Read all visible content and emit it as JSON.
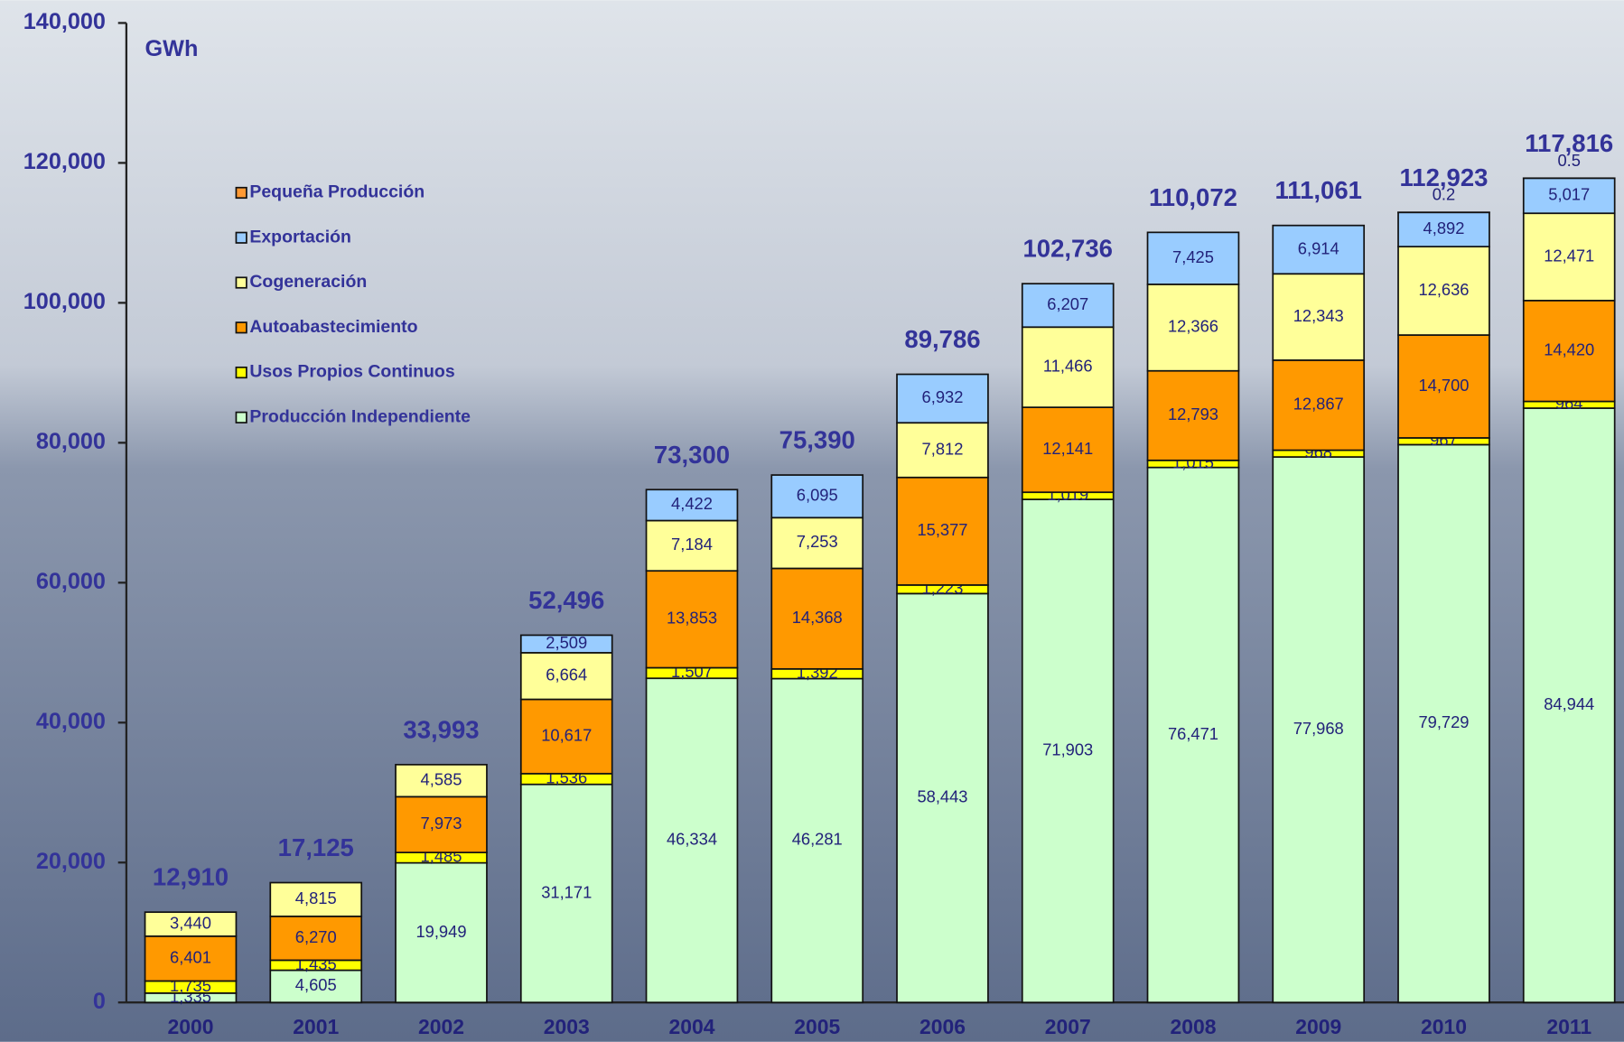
{
  "chart_data": {
    "type": "stacked-bar",
    "unit_label": "GWh",
    "categories": [
      "2000",
      "2001",
      "2002",
      "2003",
      "2004",
      "2005",
      "2006",
      "2007",
      "2008",
      "2009",
      "2010",
      "2011"
    ],
    "series": [
      {
        "name": "Producción Independiente",
        "color": "#ccffcc",
        "values": [
          1335,
          4605,
          19949,
          31171,
          46334,
          46281,
          58443,
          71903,
          76471,
          77968,
          79729,
          84944
        ],
        "value_labels": [
          "1,335",
          "4,605",
          "19,949",
          "31,171",
          "46,334",
          "46,281",
          "58,443",
          "71,903",
          "76,471",
          "77,968",
          "79,729",
          "84,944"
        ]
      },
      {
        "name": "Usos Propios Continuos",
        "color": "#ffff00",
        "values": [
          1735,
          1435,
          1485,
          1536,
          1507,
          1392,
          1223,
          1019,
          1015,
          968,
          967,
          964
        ],
        "value_labels": [
          "1,735",
          "1,435",
          "1,485",
          "1,536",
          "1,507",
          "1,392",
          "1,223",
          "1,019",
          "1,015",
          "968",
          "967",
          "964"
        ]
      },
      {
        "name": "Autoabastecimiento",
        "color": "#ff9900",
        "values": [
          6401,
          6270,
          7973,
          10617,
          13853,
          14368,
          15377,
          12141,
          12793,
          12867,
          14700,
          14420
        ],
        "value_labels": [
          "6,401",
          "6,270",
          "7,973",
          "10,617",
          "13,853",
          "14,368",
          "15,377",
          "12,141",
          "12,793",
          "12,867",
          "14,700",
          "14,420"
        ]
      },
      {
        "name": "Cogeneración",
        "color": "#ffff99",
        "values": [
          3440,
          4815,
          4585,
          6664,
          7184,
          7253,
          7812,
          11466,
          12366,
          12343,
          12636,
          12471
        ],
        "value_labels": [
          "3,440",
          "4,815",
          "4,585",
          "6,664",
          "7,184",
          "7,253",
          "7,812",
          "11,466",
          "12,366",
          "12,343",
          "12,636",
          "12,471"
        ]
      },
      {
        "name": "Exportación",
        "color": "#99ccff",
        "values": [
          null,
          null,
          null,
          2509,
          4422,
          6095,
          6932,
          6207,
          7425,
          6914,
          4892,
          5017
        ],
        "value_labels": [
          null,
          null,
          null,
          "2,509",
          "4,422",
          "6,095",
          "6,932",
          "6,207",
          "7,425",
          "6,914",
          "4,892",
          "5,017"
        ]
      },
      {
        "name": "Pequeña Producción",
        "color": "#ff9933",
        "values": [
          null,
          null,
          null,
          null,
          null,
          null,
          null,
          null,
          null,
          null,
          0.2,
          0.5
        ]
      }
    ],
    "totals": [
      12910,
      17125,
      33993,
      52496,
      73300,
      75390,
      89786,
      102736,
      110072,
      111061,
      112923,
      117816
    ],
    "total_labels": [
      "12,910",
      "17,125",
      "33,993",
      "52,496",
      "73,300",
      "75,390",
      "89,786",
      "102,736",
      "110,072",
      "111,061",
      "112,923",
      "117,816"
    ],
    "ylim": [
      0,
      140000
    ],
    "yticks": [
      0,
      {
        "value": 20000,
        "label": "20,000"
      },
      {
        "value": 40000,
        "label": "40,000"
      },
      {
        "value": 60000,
        "label": "60,000"
      },
      {
        "value": 80000,
        "label": "80,000"
      },
      {
        "value": 100000,
        "label": "100,000"
      },
      {
        "value": 120000,
        "label": "120,000"
      },
      {
        "value": 140000,
        "label": "140,000"
      }
    ]
  }
}
